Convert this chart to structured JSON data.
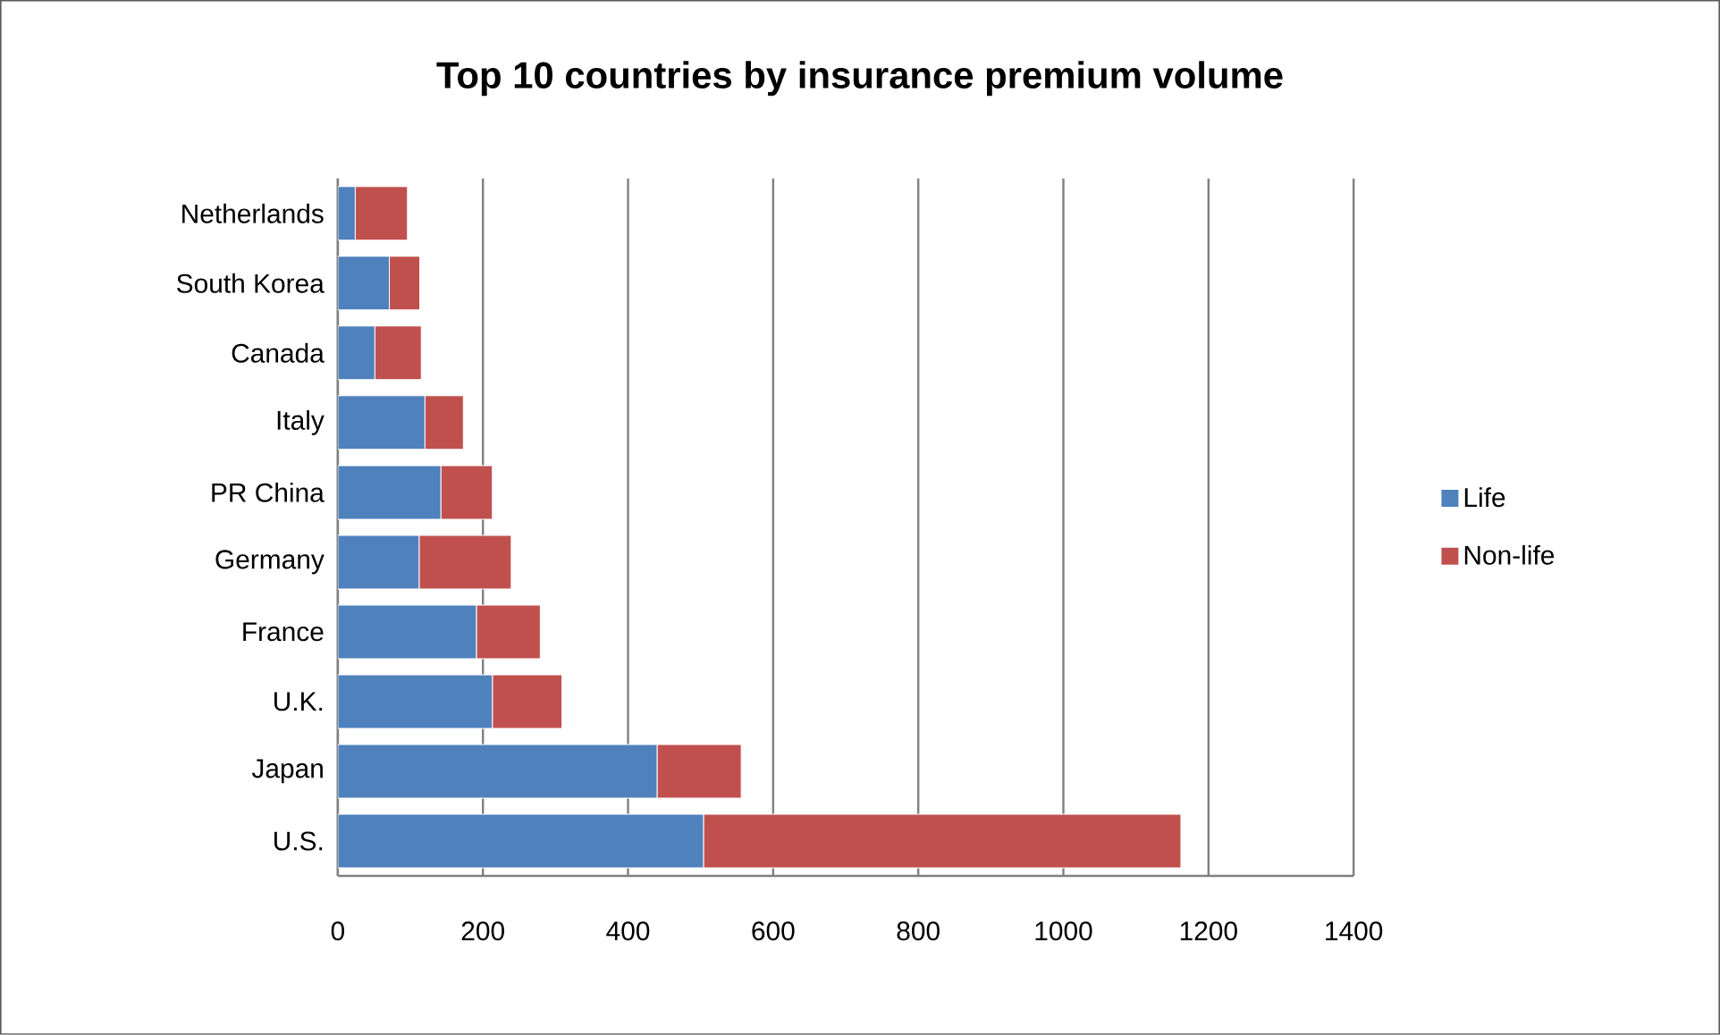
{
  "chart_data": {
    "type": "bar",
    "orientation": "horizontal",
    "stacked": true,
    "title": "Top 10 countries by insurance premium volume",
    "categories": [
      "Netherlands",
      "South Korea",
      "Canada",
      "Italy",
      "PR China",
      "Germany",
      "France",
      "U.K.",
      "Japan",
      "U.S."
    ],
    "series": [
      {
        "name": "Life",
        "color": "#4f81bd",
        "values": [
          24,
          71,
          51,
          120,
          142,
          112,
          191,
          213,
          440,
          504
        ]
      },
      {
        "name": "Non-life",
        "color": "#c0504d",
        "values": [
          72,
          42,
          64,
          53,
          71,
          127,
          88,
          96,
          116,
          658
        ]
      }
    ],
    "xlim": [
      0,
      1400
    ],
    "xticks": [
      0,
      200,
      400,
      600,
      800,
      1000,
      1200,
      1400
    ],
    "grid": "x",
    "legend": "right"
  }
}
